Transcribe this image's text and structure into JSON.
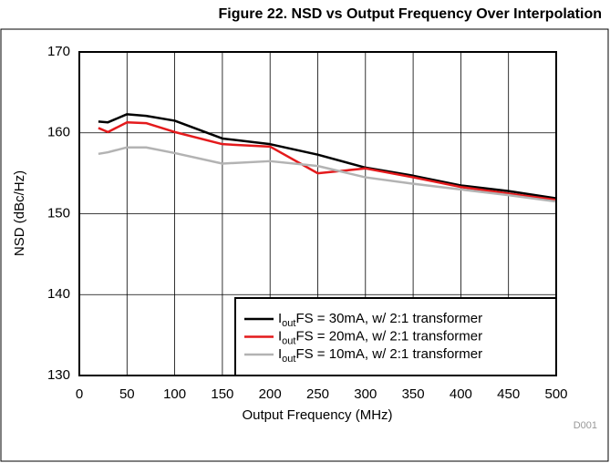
{
  "chart_data": {
    "type": "line",
    "title": "Figure 22. NSD vs Output Frequency Over Interpolation",
    "x_label": "Output Frequency (MHz)",
    "y_label": "NSD (dBc/Hz)",
    "annotation": "D001",
    "x": [
      20,
      30,
      50,
      70,
      100,
      150,
      200,
      250,
      300,
      350,
      400,
      450,
      500
    ],
    "series": [
      {
        "name": "IoutFS = 30mA, w/ 2:1 transformer",
        "color": "#000000",
        "values": [
          161.4,
          161.3,
          162.3,
          162.1,
          161.5,
          159.3,
          158.6,
          157.3,
          155.7,
          154.7,
          153.5,
          152.8,
          151.9
        ]
      },
      {
        "name": "IoutFS = 20mA, w/ 2:1 transformer",
        "color": "#e41a1c",
        "values": [
          160.6,
          160.1,
          161.3,
          161.2,
          160.1,
          158.6,
          158.3,
          155.0,
          155.6,
          154.5,
          153.3,
          152.5,
          151.7
        ]
      },
      {
        "name": "IoutFS = 10mA, w/ 2:1 transformer",
        "color": "#b3b3b3",
        "values": [
          157.4,
          157.6,
          158.2,
          158.2,
          157.5,
          156.2,
          156.5,
          155.9,
          154.5,
          153.7,
          153.0,
          152.3,
          151.5
        ]
      }
    ],
    "xlim": [
      0,
      500
    ],
    "xticks": [
      0,
      50,
      100,
      150,
      200,
      250,
      300,
      350,
      400,
      450,
      500
    ],
    "ylim": [
      130,
      170
    ],
    "yticks": [
      130,
      140,
      150,
      160,
      170
    ],
    "grid": true,
    "legend": "lower right"
  }
}
